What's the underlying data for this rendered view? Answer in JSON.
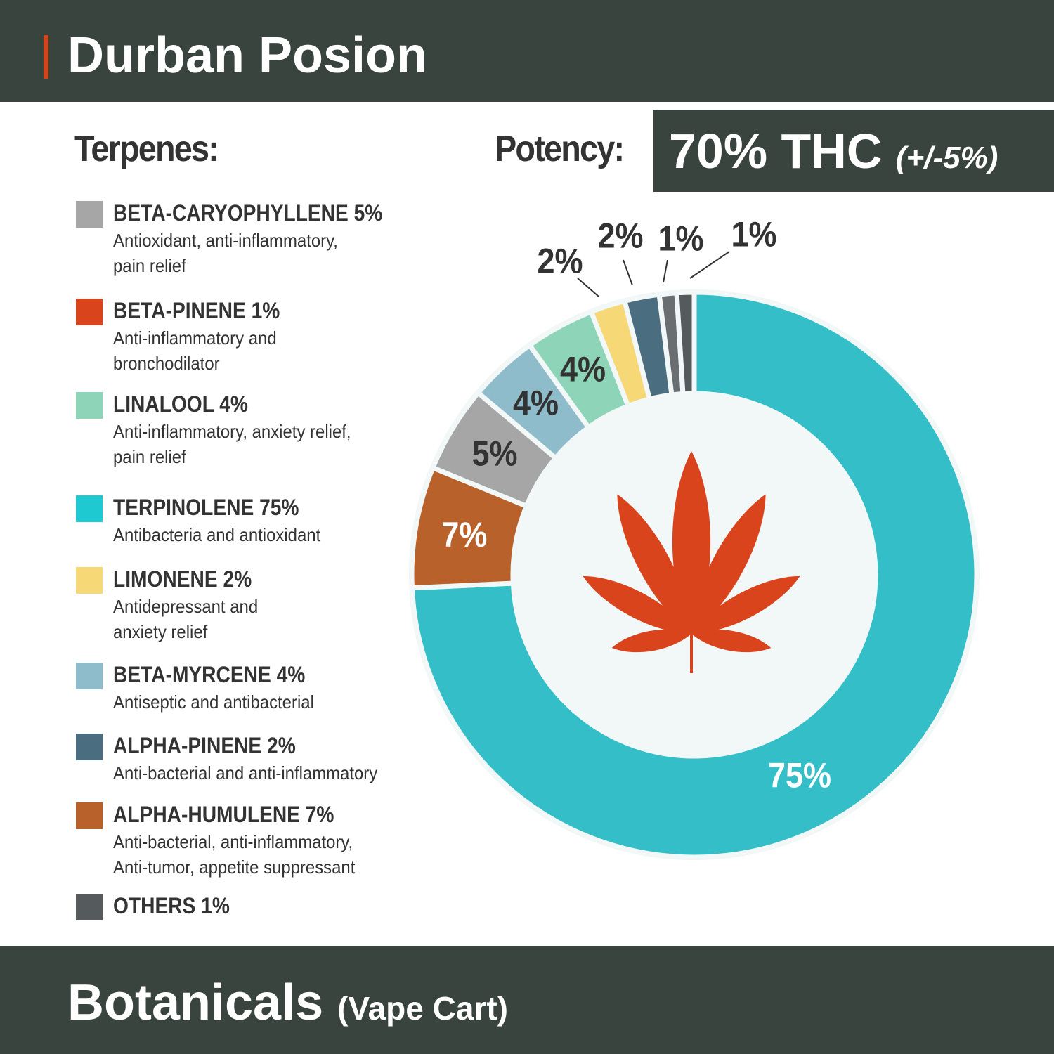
{
  "header": {
    "title": "Durban Posion"
  },
  "terpenes_heading": "Terpenes:",
  "potency": {
    "label": "Potency:",
    "value": "70% THC",
    "tolerance": "(+/-5%)"
  },
  "legend": [
    {
      "name": "BETA-CARYOPHYLLENE 5%",
      "desc": "Antioxidant, anti-inflammatory, pain relief",
      "color": "#a6a6a6"
    },
    {
      "name": "BETA-PINENE 1%",
      "desc": "Anti-inflammatory and bronchodilator",
      "color": "#d9441c"
    },
    {
      "name": "LINALOOL 4%",
      "desc": "Anti-inflammatory, anxiety relief, pain relief",
      "color": "#8dd4b8"
    },
    {
      "name": "TERPINOLENE 75%",
      "desc": "Antibacteria and antioxidant",
      "color": "#1ec9d1"
    },
    {
      "name": "LIMONENE 2%",
      "desc": "Antidepressant and anxiety relief",
      "color": "#f6d877"
    },
    {
      "name": "BETA-MYRCENE 4%",
      "desc": "Antiseptic and antibacterial",
      "color": "#8fbccb"
    },
    {
      "name": "ALPHA-PINENE 2%",
      "desc": "Anti-bacterial and anti-inflammatory",
      "color": "#4a6d80"
    },
    {
      "name": "ALPHA-HUMULENE 7%",
      "desc": "Anti-bacterial, anti-inflammatory, Anti-tumor, appetite suppressant",
      "color": "#b9612a"
    },
    {
      "name": "OTHERS 1%",
      "desc": "",
      "color": "#555a5c"
    }
  ],
  "chart_data": {
    "type": "pie",
    "title": "",
    "slices": [
      {
        "label": "75%",
        "value": 75,
        "color": "#34bfc8"
      },
      {
        "label": "7%",
        "value": 7,
        "color": "#b9612a"
      },
      {
        "label": "5%",
        "value": 5,
        "color": "#a6a6a6"
      },
      {
        "label": "4%",
        "value": 4,
        "color": "#8fbccb"
      },
      {
        "label": "4%",
        "value": 4,
        "color": "#8dd4b8"
      },
      {
        "label": "2%",
        "value": 2,
        "color": "#f6d877"
      },
      {
        "label": "2%",
        "value": 2,
        "color": "#4a6d80"
      },
      {
        "label": "1%",
        "value": 1,
        "color": "#6b6e70"
      },
      {
        "label": "1%",
        "value": 1,
        "color": "#555a5c"
      }
    ]
  },
  "brand": {
    "name": "Botanicals",
    "sub": "(Vape Cart)"
  },
  "colors": {
    "bar": "#39443f",
    "accent": "#d0451b",
    "leaf": "#d9441c",
    "donut_center": "#f2f7f7"
  }
}
